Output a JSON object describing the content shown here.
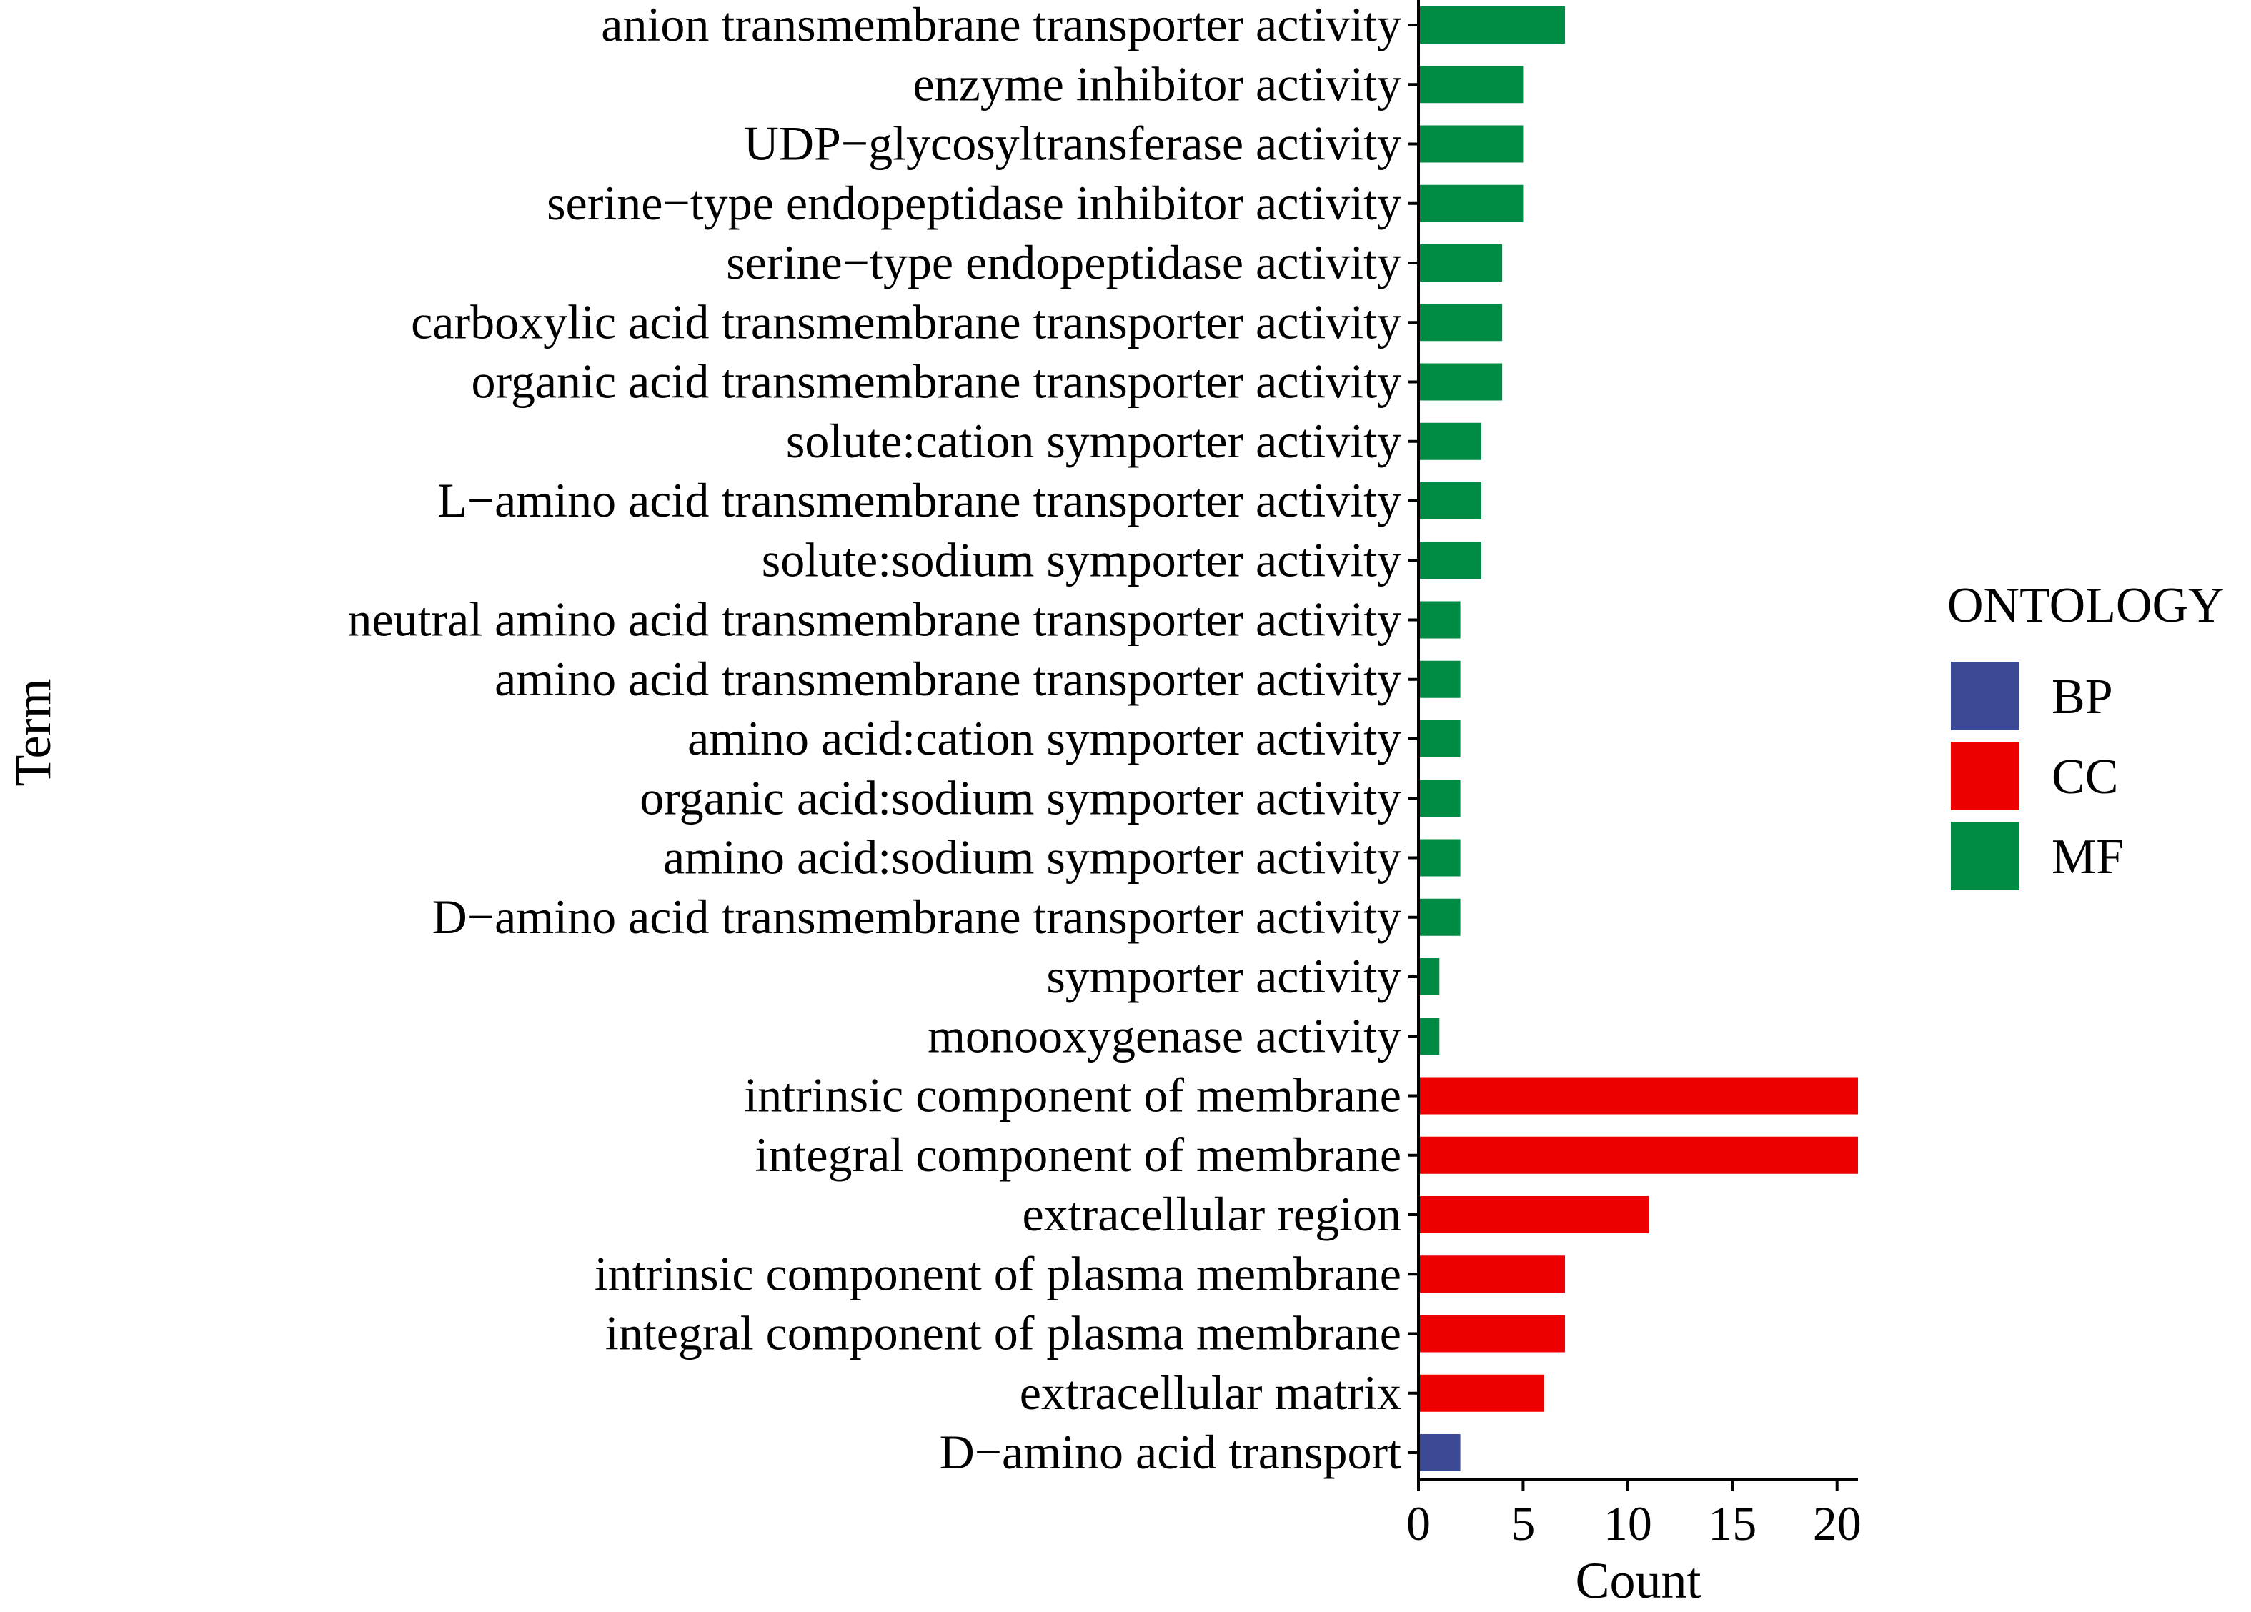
{
  "chart_data": {
    "type": "bar",
    "orientation": "horizontal",
    "xlabel": "Count",
    "ylabel": "Term",
    "xlim": [
      0,
      21
    ],
    "xticks": [
      0,
      5,
      10,
      15,
      20
    ],
    "grid": false,
    "legend": {
      "title": "ONTOLOGY",
      "placement": "right",
      "entries": [
        {
          "name": "BP",
          "color": "#3C4A96"
        },
        {
          "name": "CC",
          "color": "#EE0000"
        },
        {
          "name": "MF",
          "color": "#008B45"
        }
      ]
    },
    "bars": [
      {
        "term": "anion transmembrane transporter activity",
        "count": 7,
        "ontology": "MF"
      },
      {
        "term": "enzyme inhibitor activity",
        "count": 5,
        "ontology": "MF"
      },
      {
        "term": "UDP−glycosyltransferase activity",
        "count": 5,
        "ontology": "MF"
      },
      {
        "term": "serine−type endopeptidase inhibitor activity",
        "count": 5,
        "ontology": "MF"
      },
      {
        "term": "serine−type endopeptidase activity",
        "count": 4,
        "ontology": "MF"
      },
      {
        "term": "carboxylic acid transmembrane transporter activity",
        "count": 4,
        "ontology": "MF"
      },
      {
        "term": "organic acid transmembrane transporter activity",
        "count": 4,
        "ontology": "MF"
      },
      {
        "term": "solute:cation symporter activity",
        "count": 3,
        "ontology": "MF"
      },
      {
        "term": "L−amino acid transmembrane transporter activity",
        "count": 3,
        "ontology": "MF"
      },
      {
        "term": "solute:sodium symporter activity",
        "count": 3,
        "ontology": "MF"
      },
      {
        "term": "neutral amino acid transmembrane transporter activity",
        "count": 2,
        "ontology": "MF"
      },
      {
        "term": "amino acid transmembrane transporter activity",
        "count": 2,
        "ontology": "MF"
      },
      {
        "term": "amino acid:cation symporter activity",
        "count": 2,
        "ontology": "MF"
      },
      {
        "term": "organic acid:sodium symporter activity",
        "count": 2,
        "ontology": "MF"
      },
      {
        "term": "amino acid:sodium symporter activity",
        "count": 2,
        "ontology": "MF"
      },
      {
        "term": "D−amino acid transmembrane transporter activity",
        "count": 2,
        "ontology": "MF"
      },
      {
        "term": "symporter activity",
        "count": 1,
        "ontology": "MF"
      },
      {
        "term": "monooxygenase activity",
        "count": 1,
        "ontology": "MF"
      },
      {
        "term": "intrinsic component of membrane",
        "count": 21,
        "ontology": "CC"
      },
      {
        "term": "integral component of membrane",
        "count": 21,
        "ontology": "CC"
      },
      {
        "term": "extracellular region",
        "count": 11,
        "ontology": "CC"
      },
      {
        "term": "intrinsic component of plasma membrane",
        "count": 7,
        "ontology": "CC"
      },
      {
        "term": "integral component of plasma membrane",
        "count": 7,
        "ontology": "CC"
      },
      {
        "term": "extracellular matrix",
        "count": 6,
        "ontology": "CC"
      },
      {
        "term": "D−amino acid transport",
        "count": 2,
        "ontology": "BP"
      }
    ]
  }
}
